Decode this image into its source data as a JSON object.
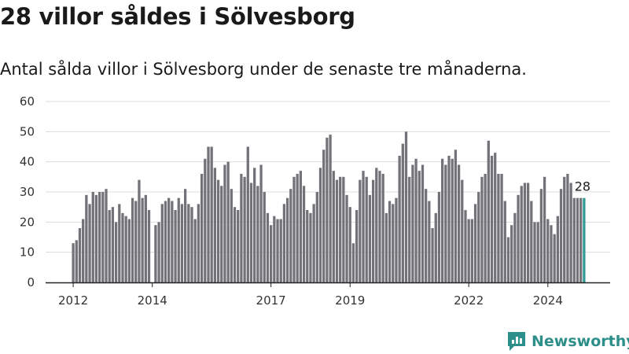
{
  "header": {
    "title": "28 villor såldes i Sölvesborg",
    "subtitle": "Antal sålda villor i Sölvesborg under de senaste tre månaderna."
  },
  "brand": {
    "name": "Newsworthy",
    "icon": "newsworthy-logo-icon",
    "color": "#2d8f8a"
  },
  "colors": {
    "bar": "#737278",
    "highlight": "#2e9c94"
  },
  "chart_data": {
    "type": "bar",
    "title": "28 villor såldes i Sölvesborg",
    "subtitle": "Antal sålda villor i Sölvesborg under de senaste tre månaderna.",
    "xlabel": "",
    "ylabel": "",
    "ylim": [
      0,
      60
    ],
    "yticks": [
      0,
      10,
      20,
      30,
      40,
      50,
      60
    ],
    "grid": true,
    "legend": "none",
    "x_start": "2012-01",
    "x_end": "2024-12",
    "xtick_labels": [
      {
        "label": "2012",
        "month": "2012-01"
      },
      {
        "label": "2014",
        "month": "2014-01"
      },
      {
        "label": "2017",
        "month": "2017-01"
      },
      {
        "label": "2019",
        "month": "2019-01"
      },
      {
        "label": "2022",
        "month": "2022-01"
      },
      {
        "label": "2024",
        "month": "2024-01"
      }
    ],
    "highlight_label": "28",
    "series": [
      {
        "values": [
          13,
          14,
          18,
          21,
          29,
          26,
          30,
          29,
          30,
          30,
          31,
          24,
          25,
          20,
          26,
          23,
          22,
          21,
          28,
          27,
          34,
          28,
          29,
          24,
          0,
          19,
          20,
          26,
          27,
          28,
          27,
          24,
          28,
          26,
          31,
          26,
          25,
          21,
          26,
          36,
          41,
          45,
          45,
          38,
          34,
          32,
          39,
          40,
          31,
          25,
          24,
          36,
          35,
          45,
          33,
          38,
          32,
          39,
          30,
          23,
          19,
          22,
          21,
          21,
          26,
          28,
          31,
          35,
          36,
          37,
          32,
          24,
          23,
          26,
          30,
          38,
          44,
          48,
          49,
          37,
          34,
          35,
          35,
          29,
          25,
          13,
          24,
          34,
          37,
          35,
          29,
          34,
          38,
          37,
          36,
          23,
          27,
          26,
          28,
          42,
          46,
          50,
          35,
          39,
          41,
          37,
          39,
          31,
          27,
          18,
          23,
          30,
          41,
          39,
          42,
          41,
          44,
          39,
          34,
          24,
          21,
          21,
          26,
          30,
          35,
          36,
          47,
          42,
          43,
          36,
          36,
          27,
          15,
          19,
          23,
          29,
          32,
          33,
          33,
          27,
          20,
          20,
          31,
          35,
          21,
          19,
          16,
          22,
          31,
          35,
          36,
          33,
          28,
          28,
          28,
          28
        ]
      }
    ]
  }
}
